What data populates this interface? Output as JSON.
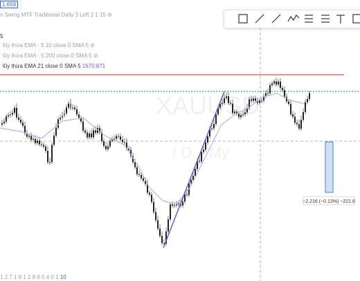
{
  "legend": {
    "price_badge": "1.659",
    "indicator_title": "n Swing MTF Traditional Daily 3 Left 2 1 15",
    "count": "5",
    "lines": [
      {
        "label": "lũy thừa EMA · 5 10 close 0 SMA 5"
      },
      {
        "label": "lũy thừa EMA · 5 200 close 0 SMA 5"
      },
      {
        "label": "lũy thừa EMA 21 close 0 SMA 5",
        "value": "1670.871"
      }
    ]
  },
  "watermark": {
    "symbol": "XAUUSD",
    "sub": "/ D... My"
  },
  "measure": {
    "label": "−2.216 (−0.13%) −221.6"
  },
  "footer": {
    "text": "1 2 7 1 8 1 2 8 8 0 4 0 1",
    "link": "10"
  }
}
